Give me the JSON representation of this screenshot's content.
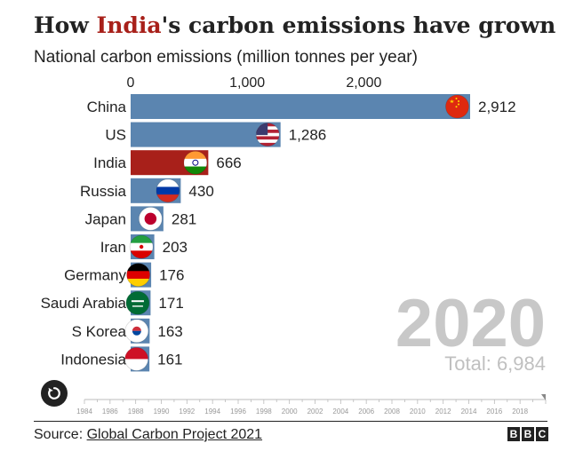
{
  "title": {
    "prefix": "How ",
    "highlight": "India",
    "suffix": "'s carbon emissions have grown"
  },
  "subtitle": "National carbon emissions (million tonnes per year)",
  "chart_data": {
    "type": "bar",
    "orientation": "horizontal",
    "title": "How India's carbon emissions have grown",
    "subtitle": "National carbon emissions (million tonnes per year)",
    "x_ticks": [
      0,
      1000,
      2000
    ],
    "x_tick_labels": [
      "0",
      "1,000",
      "2,000"
    ],
    "xlim": [
      0,
      2912
    ],
    "categories": [
      "China",
      "US",
      "India",
      "Russia",
      "Japan",
      "Iran",
      "Germany",
      "Saudi Arabia",
      "S Korea",
      "Indonesia"
    ],
    "values": [
      2912,
      1286,
      666,
      430,
      281,
      203,
      176,
      171,
      163,
      161
    ],
    "value_labels": [
      "2,912",
      "1,286",
      "666",
      "430",
      "281",
      "203",
      "176",
      "171",
      "163",
      "161"
    ],
    "flag_icons": [
      "china-flag-icon",
      "us-flag-icon",
      "india-flag-icon",
      "russia-flag-icon",
      "japan-flag-icon",
      "iran-flag-icon",
      "germany-flag-icon",
      "saudi-arabia-flag-icon",
      "south-korea-flag-icon",
      "indonesia-flag-icon"
    ],
    "bar_color": "#5b85b0",
    "highlight_category": "India",
    "highlight_color": "#a8201a",
    "year": "2020",
    "total_label": "Total: 6,984",
    "timeline": {
      "start_year": 1984,
      "end_year": 2020,
      "current_year": 2020,
      "tick_labels": [
        "1984",
        "1986",
        "1988",
        "1990",
        "1992",
        "1994",
        "1996",
        "1998",
        "2000",
        "2002",
        "2004",
        "2006",
        "2008",
        "2010",
        "2012",
        "2014",
        "2016",
        "2018"
      ]
    },
    "grid": false
  },
  "controls": {
    "replay_icon": "replay-icon"
  },
  "footer": {
    "source_prefix": "Source: ",
    "source_link": "Global Carbon Project 2021",
    "logo_letters": [
      "B",
      "B",
      "C"
    ]
  }
}
